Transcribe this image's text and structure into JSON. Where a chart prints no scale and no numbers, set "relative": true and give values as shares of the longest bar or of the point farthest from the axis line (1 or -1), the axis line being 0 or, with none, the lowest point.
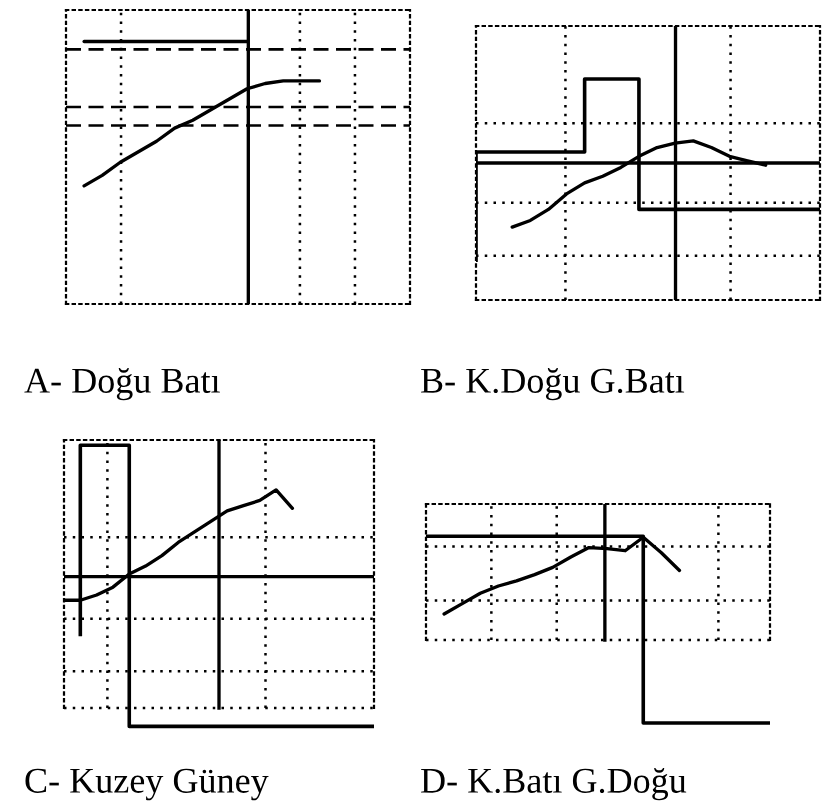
{
  "chart_data": [
    {
      "type": "line",
      "title": "A- Doğu Batı",
      "relative": true,
      "grid": "x",
      "categories": [
        null,
        null,
        null,
        null,
        null,
        null,
        null,
        null,
        null,
        null,
        null,
        null,
        null,
        null,
        null,
        null,
        null,
        null,
        null,
        null
      ],
      "series": [
        {
          "color": "#000000",
          "values": [
            null,
            0.45,
            0.49,
            0.54,
            0.58,
            0.62,
            0.67,
            0.7,
            0.74,
            0.78,
            0.82,
            0.84,
            0.85,
            0.85,
            0.85,
            null,
            null,
            null,
            null,
            null
          ]
        },
        {
          "type": "line",
          "color": "#000000",
          "values": [
            null,
            1.0,
            1.0,
            1.0,
            1.0,
            1.0,
            1.0,
            1.0,
            1.0,
            1.0,
            1.0,
            null,
            null,
            null,
            null,
            null,
            null,
            null,
            null,
            null
          ]
        }
      ],
      "ref_lines": [
        {
          "axis": "y",
          "value": 0.97,
          "line_style": "dashed"
        },
        {
          "axis": "y",
          "value": 0.75,
          "line_style": "dashed"
        },
        {
          "axis": "y",
          "value": 0.68,
          "line_style": "dashed"
        }
      ]
    },
    {
      "type": "line",
      "title": "B- K.Doğu G.Batı",
      "relative": true,
      "grid": "x",
      "categories": [
        null,
        null,
        null,
        null,
        null,
        null,
        null,
        null,
        null,
        null,
        null,
        null,
        null,
        null,
        null,
        null,
        null,
        null,
        null,
        null
      ],
      "series": [
        {
          "color": "#000000",
          "values": [
            null,
            null,
            0.33,
            0.36,
            0.41,
            0.48,
            0.53,
            0.56,
            0.6,
            0.65,
            0.69,
            0.71,
            0.72,
            0.69,
            0.65,
            0.63,
            0.61,
            null,
            null,
            null
          ]
        },
        {
          "type": "step",
          "color": "#000000",
          "values": [
            0.18,
            0.67,
            0.67,
            0.67,
            0.67,
            0.67,
            0.67,
            1.0,
            1.0,
            1.0,
            0.41,
            0.41,
            0.41,
            0.41,
            0.41,
            0.41,
            0.41,
            0.41,
            0.41,
            0.41
          ]
        }
      ],
      "ref_lines": [
        {
          "axis": "y",
          "value": 0.62,
          "line_style": "solid"
        },
        {
          "axis": "y",
          "value": 0.8,
          "line_style": "dotted"
        },
        {
          "axis": "y",
          "value": 0.44,
          "line_style": "dotted"
        },
        {
          "axis": "y",
          "value": 0.2,
          "line_style": "dotted"
        }
      ]
    },
    {
      "type": "line",
      "title": "C- Kuzey Güney",
      "relative": true,
      "grid": "x",
      "categories": [
        null,
        null,
        null,
        null,
        null,
        null,
        null,
        null,
        null,
        null,
        null,
        null,
        null,
        null,
        null,
        null,
        null,
        null,
        null,
        null
      ],
      "series": [
        {
          "color": "#000000",
          "values": [
            0.41,
            0.41,
            0.43,
            0.46,
            0.51,
            0.54,
            0.58,
            0.63,
            0.67,
            0.71,
            0.75,
            0.77,
            0.79,
            0.83,
            0.76,
            null,
            null,
            null,
            null,
            null
          ]
        },
        {
          "type": "step",
          "color": "#000000",
          "values": [
            null,
            0.28,
            1.0,
            1.0,
            1.0,
            -0.07,
            -0.07,
            -0.07,
            -0.07,
            -0.07,
            -0.07,
            -0.07,
            -0.07,
            -0.07,
            -0.07,
            -0.07,
            -0.07,
            -0.07,
            -0.07,
            -0.07
          ]
        }
      ],
      "ref_lines": [
        {
          "axis": "y",
          "value": 0,
          "line_style": "dotted"
        },
        {
          "axis": "y",
          "value": 0.5,
          "line_style": "solid"
        },
        {
          "axis": "y",
          "value": 0.65,
          "line_style": "dotted"
        },
        {
          "axis": "y",
          "value": 0.34,
          "line_style": "dotted"
        },
        {
          "axis": "y",
          "value": 0.14,
          "line_style": "dotted"
        }
      ]
    },
    {
      "type": "line",
      "title": "D- K.Batı G.Doğu",
      "relative": true,
      "grid": "x",
      "categories": [
        null,
        null,
        null,
        null,
        null,
        null,
        null,
        null,
        null,
        null,
        null,
        null,
        null,
        null,
        null,
        null,
        null,
        null,
        null,
        null
      ],
      "series": [
        {
          "color": "#000000",
          "values": [
            null,
            0.25,
            0.35,
            0.45,
            0.52,
            0.57,
            0.63,
            0.7,
            0.8,
            0.89,
            0.88,
            0.86,
            0.99,
            0.84,
            0.67,
            null,
            null,
            null,
            null,
            null
          ]
        },
        {
          "type": "step",
          "color": "#000000",
          "values": [
            1.0,
            1.0,
            1.0,
            1.0,
            1.0,
            1.0,
            1.0,
            1.0,
            1.0,
            1.0,
            1.0,
            1.0,
            1.0,
            -0.8,
            -0.8,
            -0.8,
            -0.8,
            -0.8,
            -0.8,
            -0.8
          ]
        }
      ],
      "ref_lines": [
        {
          "axis": "y",
          "value": 0,
          "line_style": "dotted"
        },
        {
          "axis": "y",
          "value": 0.9,
          "line_style": "dotted"
        },
        {
          "axis": "y",
          "value": 0.38,
          "line_style": "dotted"
        }
      ]
    }
  ]
}
